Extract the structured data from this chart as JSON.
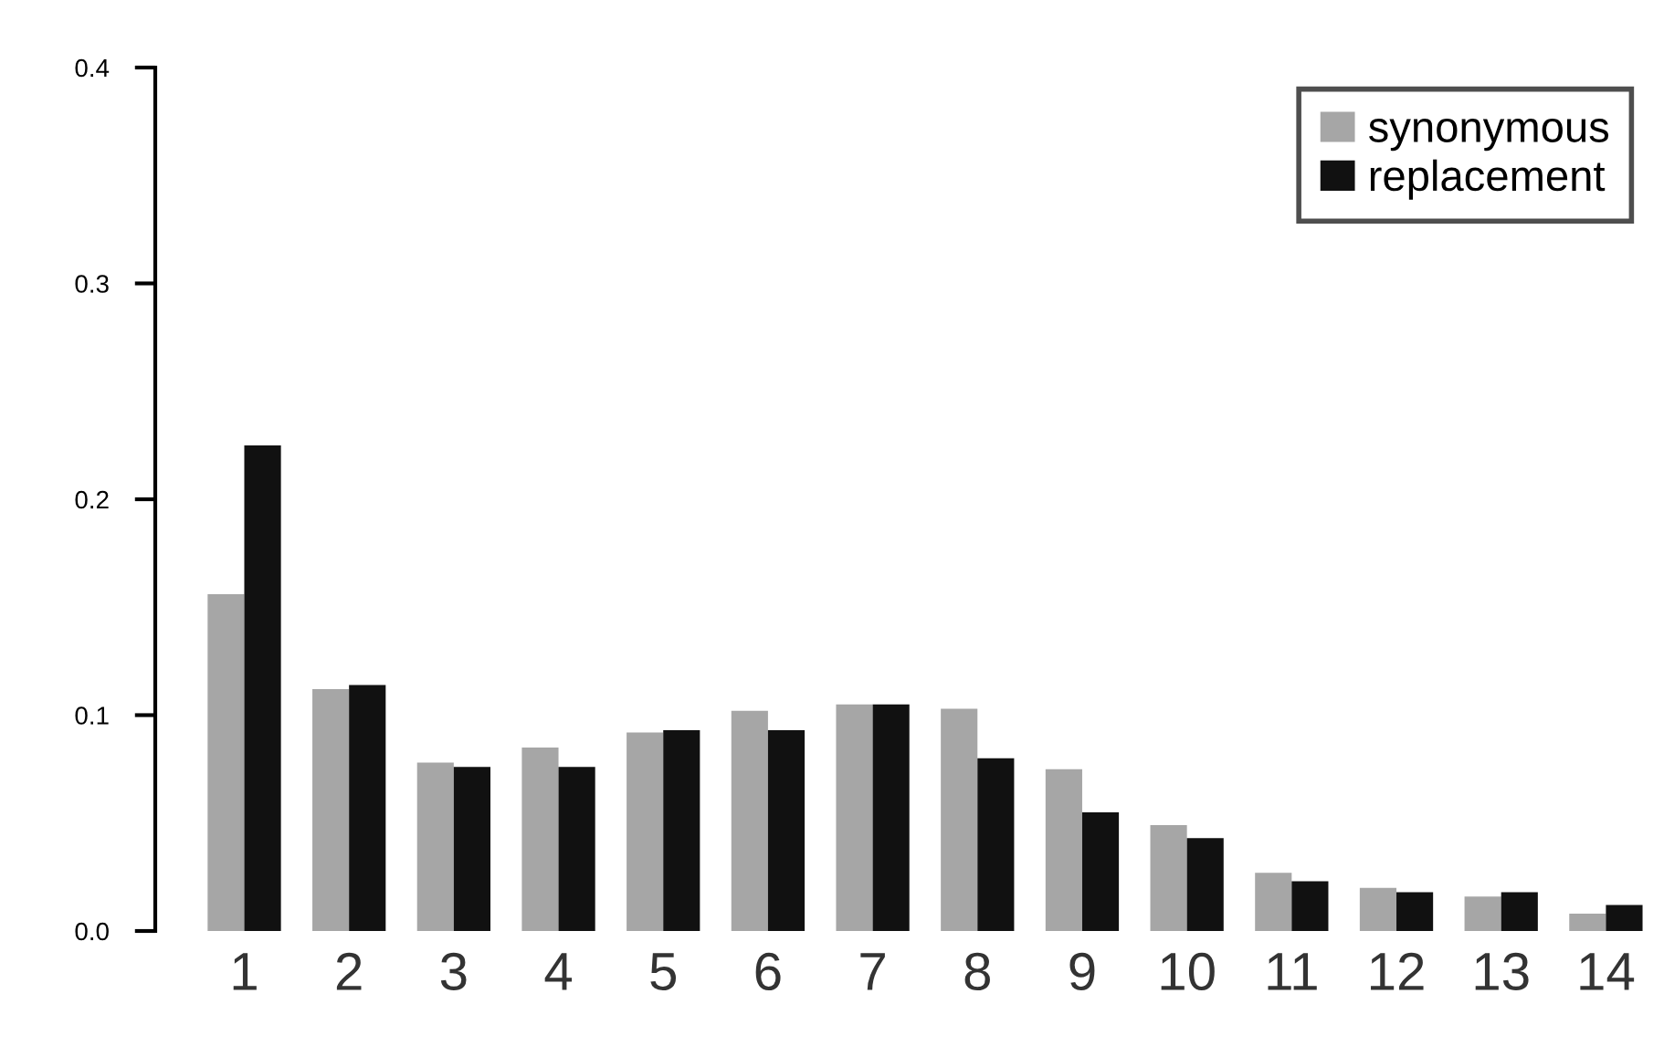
{
  "chart_data": {
    "type": "bar",
    "categories": [
      "1",
      "2",
      "3",
      "4",
      "5",
      "6",
      "7",
      "8",
      "9",
      "10",
      "11",
      "12",
      "13",
      "14"
    ],
    "series": [
      {
        "name": "synonymous",
        "color": "#a6a6a6",
        "values": [
          0.156,
          0.112,
          0.078,
          0.085,
          0.092,
          0.102,
          0.105,
          0.103,
          0.075,
          0.049,
          0.027,
          0.02,
          0.016,
          0.008
        ]
      },
      {
        "name": "replacement",
        "color": "#111111",
        "values": [
          0.225,
          0.114,
          0.076,
          0.076,
          0.093,
          0.093,
          0.105,
          0.08,
          0.055,
          0.043,
          0.023,
          0.018,
          0.018,
          0.012
        ]
      }
    ],
    "ylim": [
      0,
      0.4
    ],
    "yticks": [
      {
        "value": 0,
        "label": "0.0"
      },
      0.1,
      0.2,
      0.3,
      0.4
    ],
    "legend": "top right",
    "grid": false
  }
}
